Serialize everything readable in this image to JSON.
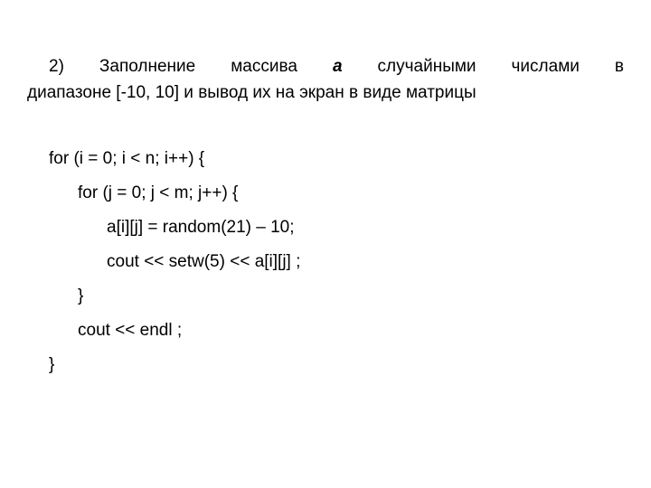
{
  "description": {
    "line1_prefix": "2)   Заполнение   массива   ",
    "array_name": "a",
    "line1_suffix": "   случайными   числами   в",
    "line2": "диапазоне [-10, 10] и вывод их на экран в виде матрицы"
  },
  "code": {
    "line1": "for (i = 0; i < n; i++) {",
    "line2": "for (j = 0; j < m; j++) {",
    "line3": "a[i][j] = random(21) – 10;",
    "line4": "cout << setw(5) << a[i][j] ;",
    "line5": "}",
    "line6": "cout << endl ;",
    "line7": "}"
  },
  "styling": {
    "font_family": "Arial",
    "background_color": "#ffffff",
    "text_color": "#000000",
    "body_font_size": 19,
    "code_font_size": 19,
    "line_height_code": 2.0
  }
}
